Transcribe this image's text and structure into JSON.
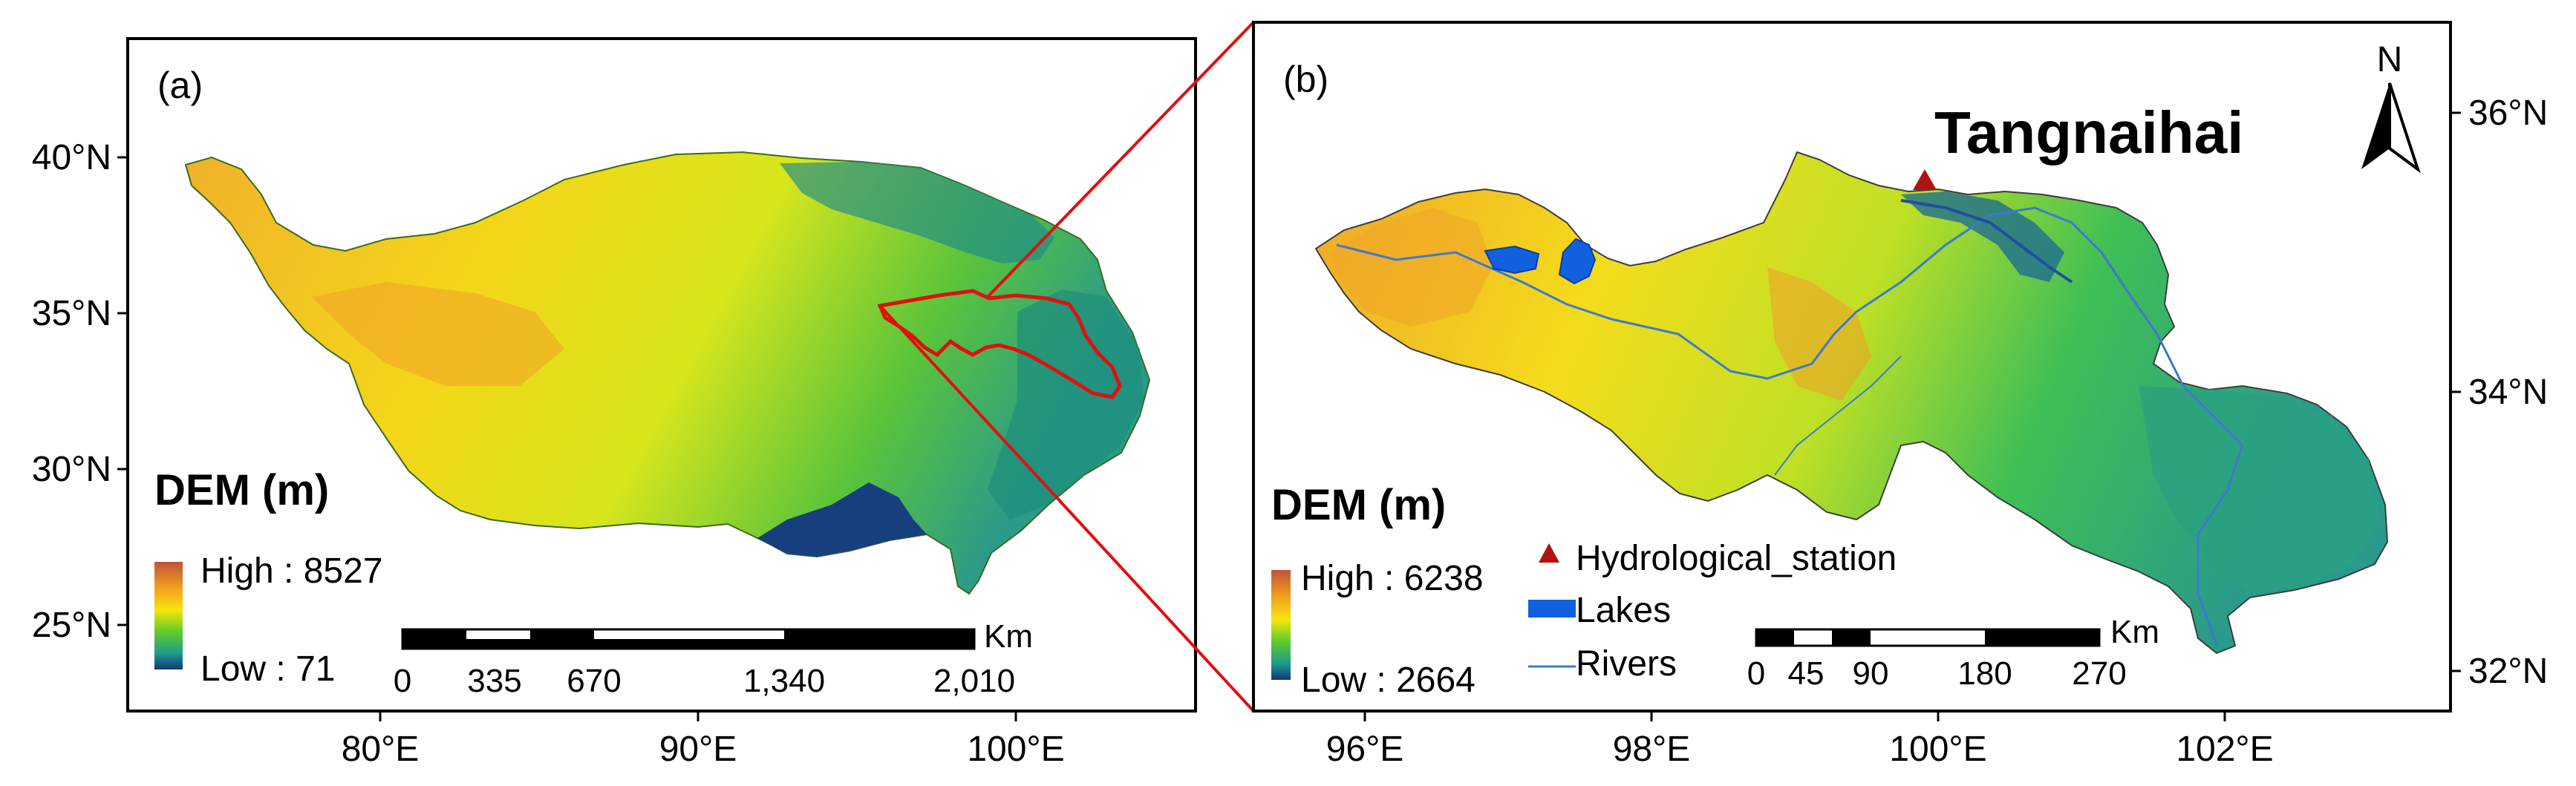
{
  "panel_a": {
    "label": "(a)",
    "lat_ticks": [
      "40°N",
      "35°N",
      "30°N",
      "25°N"
    ],
    "lon_ticks": [
      "80°E",
      "90°E",
      "100°E"
    ],
    "legend": {
      "title": "DEM (m)",
      "high": "High : 8527",
      "low": "Low : 71"
    },
    "scalebar": {
      "unit": "Km",
      "labels": [
        "0",
        "335",
        "670",
        "1,340",
        "2,010"
      ]
    }
  },
  "panel_b": {
    "label": "(b)",
    "lat_ticks": [
      "36°N",
      "34°N",
      "32°N"
    ],
    "lon_ticks": [
      "96°E",
      "98°E",
      "100°E",
      "102°E"
    ],
    "north": "N",
    "station_name": "Tangnaihai",
    "legend": {
      "title": "DEM (m)",
      "high": "High : 6238",
      "low": "Low : 2664",
      "hydro_station": "Hydrological_station",
      "lakes": "Lakes",
      "rivers": "Rivers"
    },
    "scalebar": {
      "unit": "Km",
      "labels": [
        "0",
        "45",
        "90",
        "180",
        "270"
      ]
    }
  },
  "colors": {
    "dem_high": "#c0533a",
    "dem_mid_high": "#f2a21e",
    "dem_mid": "#f5e60c",
    "dem_mid_low": "#5fcc2a",
    "dem_low_mid": "#1f9c8c",
    "dem_low": "#10397a",
    "basin_outline": "#e01010",
    "station": "#b0140e",
    "lakes": "#1160e0",
    "rivers": "#3a7ad0"
  }
}
